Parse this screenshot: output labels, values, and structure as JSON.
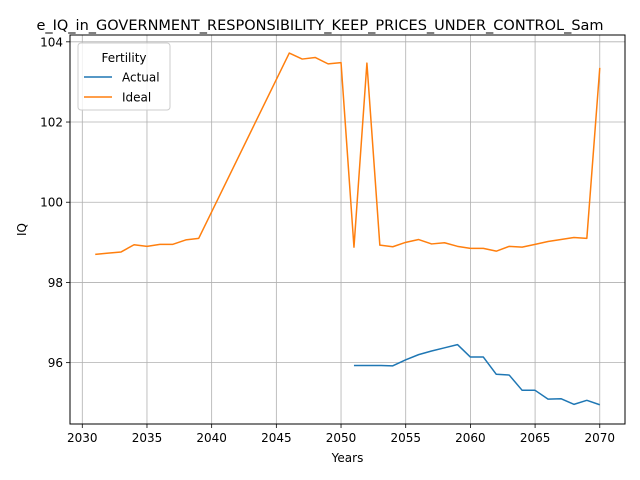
{
  "chart_data": {
    "type": "line",
    "title": "e_IQ_in_GOVERNMENT_RESPONSIBILITY_KEEP_PRICES_UNDER_CONTROL_Sam",
    "xlabel": "Years",
    "ylabel": "IQ",
    "xlim": [
      2029.05,
      2071.95
    ],
    "ylim": [
      94.47,
      104.17
    ],
    "xticks": [
      2030,
      2035,
      2040,
      2045,
      2050,
      2055,
      2060,
      2065,
      2070
    ],
    "yticks": [
      96,
      98,
      100,
      102,
      104
    ],
    "grid": true,
    "legend": {
      "title": "Fertility",
      "placement": "top-left"
    },
    "series": [
      {
        "name": "Actual",
        "color": "#1f77b4",
        "x": [
          2051,
          2052,
          2053,
          2054,
          2055,
          2056,
          2057,
          2058,
          2059,
          2060,
          2061,
          2062,
          2063,
          2064,
          2065,
          2066,
          2067,
          2068,
          2069,
          2070
        ],
        "y": [
          95.93,
          95.93,
          95.93,
          95.92,
          96.07,
          96.2,
          96.29,
          96.37,
          96.45,
          96.14,
          96.14,
          95.71,
          95.69,
          95.31,
          95.31,
          95.09,
          95.1,
          94.96,
          95.06,
          94.95
        ]
      },
      {
        "name": "Ideal",
        "color": "#ff7f0e",
        "x": [
          2031,
          2032,
          2033,
          2034,
          2035,
          2036,
          2037,
          2038,
          2039,
          2046,
          2047,
          2048,
          2049,
          2050,
          2051,
          2052,
          2053,
          2054,
          2055,
          2056,
          2057,
          2058,
          2059,
          2060,
          2061,
          2062,
          2063,
          2064,
          2065,
          2066,
          2067,
          2068,
          2069,
          2070
        ],
        "y": [
          98.7,
          98.73,
          98.76,
          98.94,
          98.9,
          98.95,
          98.95,
          99.06,
          99.1,
          103.72,
          103.57,
          103.61,
          103.45,
          103.48,
          98.88,
          103.47,
          98.93,
          98.89,
          99.0,
          99.07,
          98.96,
          98.99,
          98.9,
          98.85,
          98.85,
          98.78,
          98.9,
          98.88,
          98.95,
          99.02,
          99.07,
          99.12,
          99.1,
          103.35
        ]
      }
    ]
  }
}
